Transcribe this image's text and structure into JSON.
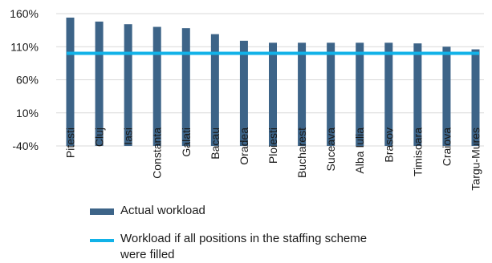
{
  "chart_data": {
    "type": "bar",
    "categories": [
      "Pitesti",
      "Cluj",
      "Iasi",
      "Constanta",
      "Galati",
      "Bacau",
      "Oradea",
      "Ploiesti",
      "Bucharest",
      "Suceava",
      "Alba Iulia",
      "Brasov",
      "Timisoara",
      "Craiova",
      "Targu-Mures"
    ],
    "series": [
      {
        "name": "Actual workload",
        "type": "bar",
        "values": [
          154,
          148,
          144,
          140,
          138,
          129,
          119,
          116,
          116,
          116,
          116,
          116,
          115,
          110,
          106
        ]
      },
      {
        "name": "Workload if all positions in the staffing scheme were filled",
        "type": "line",
        "values": [
          100,
          100,
          100,
          100,
          100,
          100,
          100,
          100,
          100,
          100,
          100,
          100,
          100,
          100,
          100
        ]
      }
    ],
    "y_ticks": [
      "160%",
      "110%",
      "60%",
      "10%",
      "-40%"
    ],
    "y_tick_values": [
      160,
      110,
      60,
      10,
      -40
    ],
    "ylim": [
      -40,
      160
    ],
    "grid": true,
    "legend_position": "bottom",
    "colors": {
      "bar": "#3d6488",
      "line": "#11b2e8",
      "grid": "#d9d9d9"
    }
  }
}
